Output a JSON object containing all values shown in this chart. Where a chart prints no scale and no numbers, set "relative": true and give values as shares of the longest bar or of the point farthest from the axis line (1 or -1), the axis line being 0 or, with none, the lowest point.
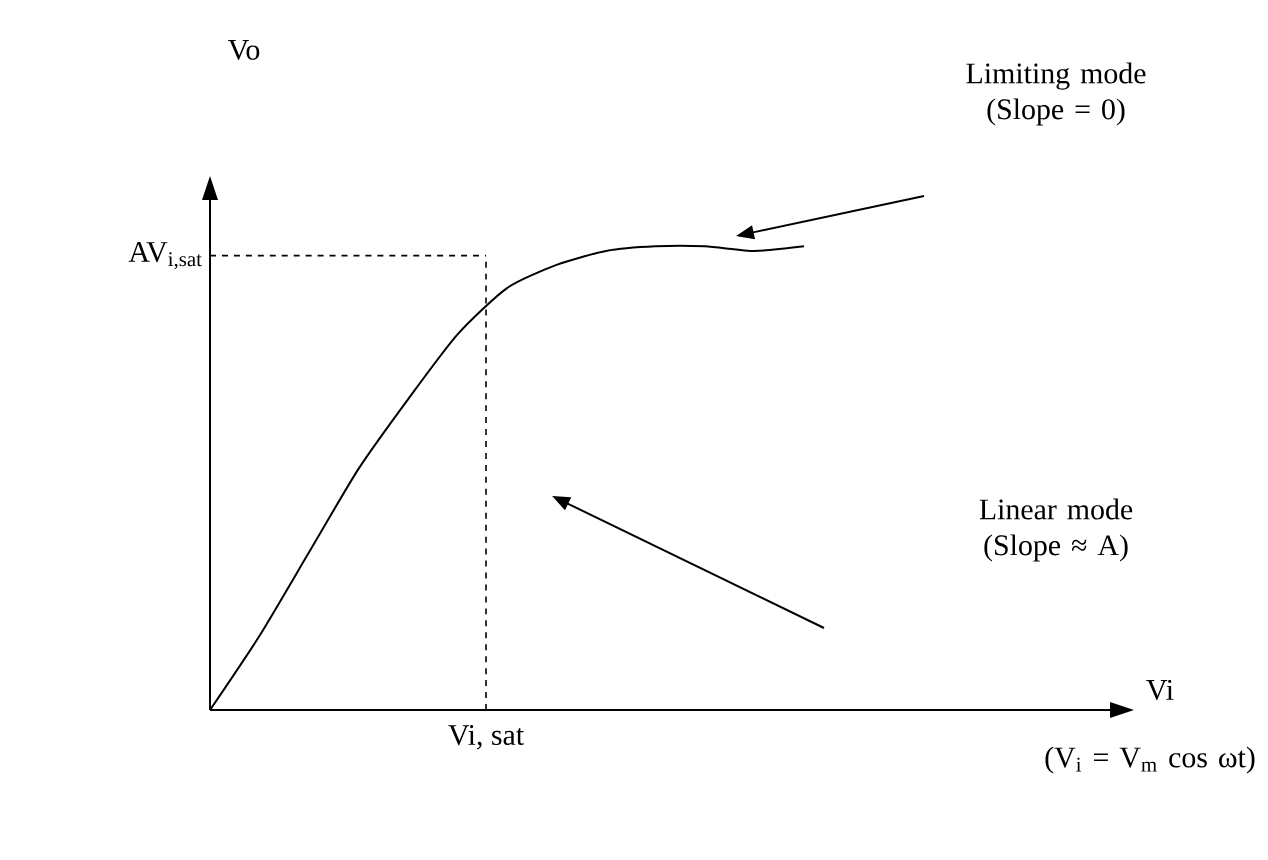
{
  "chart_data": {
    "type": "line",
    "relative": true,
    "categories": [
      null,
      null,
      null,
      null,
      null,
      null,
      null,
      null,
      null,
      null,
      null,
      null,
      null
    ],
    "values": [
      0,
      0.16,
      0.34,
      0.52,
      0.67,
      0.81,
      0.91,
      0.96,
      0.99,
      1,
      1,
      0.99,
      1
    ],
    "color": "#000000",
    "ref_lines": [
      {
        "axis": "y",
        "value": 0.98,
        "label": "AV$_{i,sat}$",
        "line_style": "dashed"
      }
    ],
    "annotations": [
      "Vo",
      "Vi",
      "(V$_{i}$ = V$_{m}$ cos ωt)",
      "Vi, sat",
      "Limiting mode (Slope = 0)",
      "Linear mode (Slope ≈ A)"
    ]
  }
}
